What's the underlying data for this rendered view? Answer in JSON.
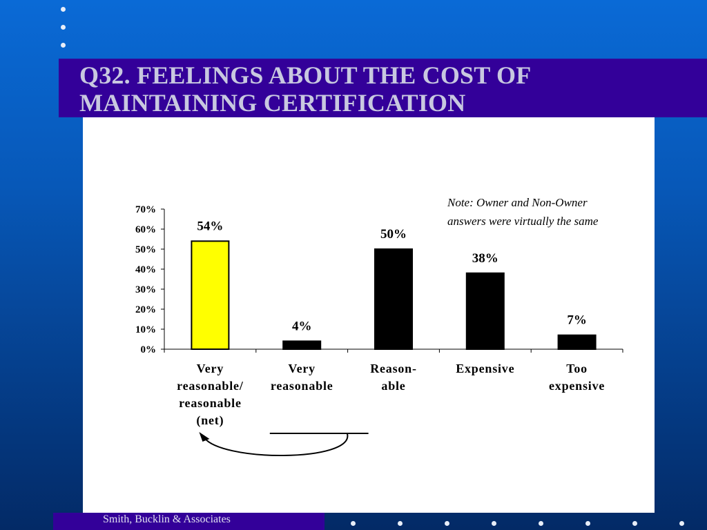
{
  "slide": {
    "title_line1": "Q32.  FEELINGS ABOUT THE COST OF",
    "title_line2": "MAINTAINING CERTIFICATION",
    "footer": "Smith, Bucklin & Associates",
    "note": "Note:  Owner and Non-Owner answers were virtually the same"
  },
  "colors": {
    "background": "#0758b8",
    "title_band": "#330099",
    "highlight_bar": "#ffff00",
    "bar": "#000000"
  },
  "chart_data": {
    "type": "bar",
    "categories": [
      [
        "Very",
        "reasonable/",
        "reasonable",
        "(net)"
      ],
      [
        "Very",
        "reasonable"
      ],
      [
        "Reason-",
        "able"
      ],
      [
        "Expensive"
      ],
      [
        "Too",
        "expensive"
      ]
    ],
    "values": [
      54,
      4,
      50,
      38,
      7
    ],
    "data_labels": [
      "54%",
      "4%",
      "50%",
      "38%",
      "7%"
    ],
    "highlighted_index": 0,
    "y_ticks": [
      "0%",
      "10%",
      "20%",
      "30%",
      "40%",
      "50%",
      "60%",
      "70%"
    ],
    "ylim": [
      0,
      70
    ],
    "grid": false,
    "title": "",
    "xlabel": "",
    "ylabel": ""
  }
}
